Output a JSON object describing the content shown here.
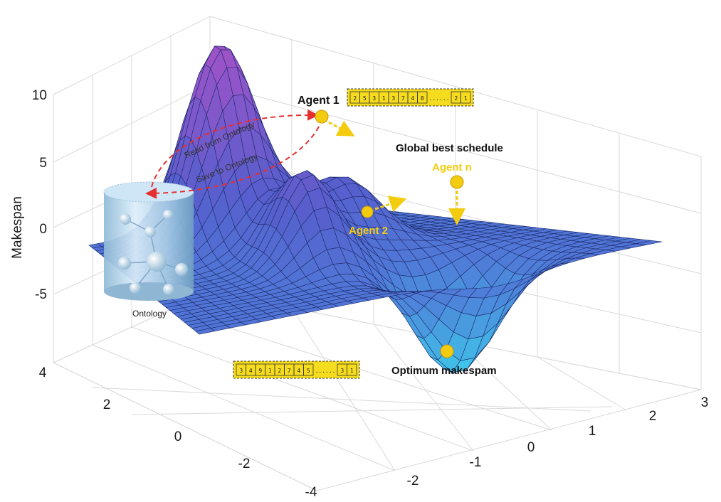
{
  "axes": {
    "z_label": "Makespan",
    "z_ticks": [
      "10",
      "5",
      "0",
      "-5"
    ],
    "y_ticks": [
      "4",
      "2",
      "0",
      "-2",
      "-4"
    ],
    "x_ticks": [
      "-2",
      "-1",
      "0",
      "1",
      "2",
      "3"
    ]
  },
  "labels": {
    "agent1": "Agent 1",
    "agent2": "Agent 2",
    "agentn": "Agent n",
    "global_best": "Global best schedule",
    "optimum": "Optimum makespam",
    "read": "Read from Ontology",
    "save": "Save to Ontology",
    "ontology": "Ontology"
  },
  "schedules": {
    "top": [
      "2",
      "5",
      "3",
      "1",
      "3",
      "7",
      "4",
      "8",
      "......",
      "2",
      "1"
    ],
    "bottom": [
      "3",
      "4",
      "9",
      "1",
      "2",
      "7",
      "4",
      "5",
      "......",
      "3",
      "1"
    ]
  },
  "colors": {
    "surface_top": "#9b4fc9",
    "surface_mid": "#5b6fd6",
    "surface_low": "#3fc7ea",
    "mesh": "#1c2a6a",
    "agent_point": "#f3cc10",
    "schedule_box": "#f6dc1e",
    "arrow_red": "#e53030"
  }
}
